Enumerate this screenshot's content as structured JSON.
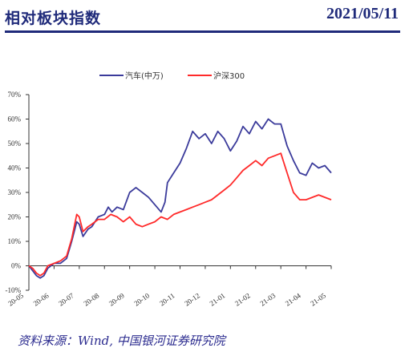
{
  "header": {
    "title": "相对板块指数",
    "date": "2021/05/11"
  },
  "source": "资料来源：Wind, 中国银河证券研究院",
  "colors": {
    "series1": "#3b3b9b",
    "series2": "#ff2a2a",
    "header": "#1f2a7a"
  },
  "chart_data": {
    "type": "line",
    "legend_position": "top-center",
    "grid": false,
    "ylim": [
      -10,
      70
    ],
    "yticks": [
      "-10%",
      "0%",
      "10%",
      "20%",
      "30%",
      "40%",
      "50%",
      "60%",
      "70%"
    ],
    "xlim": [
      0,
      24
    ],
    "xticks": [
      "20-05",
      "20-06",
      "20-07",
      "20-08",
      "20-09",
      "20-10",
      "20-11",
      "20-12",
      "21-01",
      "21-02",
      "21-03",
      "21-04",
      "21-05"
    ],
    "series": [
      {
        "name": "汽车(中万)",
        "points": [
          [
            0,
            0
          ],
          [
            0.3,
            -2
          ],
          [
            0.6,
            -4
          ],
          [
            0.9,
            -5
          ],
          [
            1.2,
            -4
          ],
          [
            1.5,
            -1
          ],
          [
            2,
            1
          ],
          [
            2.5,
            1
          ],
          [
            3,
            3
          ],
          [
            3.4,
            10
          ],
          [
            3.8,
            18
          ],
          [
            4.0,
            17
          ],
          [
            4.3,
            12
          ],
          [
            4.7,
            15
          ],
          [
            5,
            16
          ],
          [
            5.5,
            20
          ],
          [
            6,
            21
          ],
          [
            6.3,
            24
          ],
          [
            6.6,
            22
          ],
          [
            7,
            24
          ],
          [
            7.5,
            23
          ],
          [
            8,
            30
          ],
          [
            8.5,
            32
          ],
          [
            9,
            30
          ],
          [
            9.5,
            28
          ],
          [
            10,
            25
          ],
          [
            10.5,
            22
          ],
          [
            10.8,
            26
          ],
          [
            11,
            34
          ],
          [
            11.5,
            38
          ],
          [
            12,
            42
          ],
          [
            12.5,
            48
          ],
          [
            13,
            55
          ],
          [
            13.5,
            52
          ],
          [
            14,
            54
          ],
          [
            14.5,
            50
          ],
          [
            15,
            55
          ],
          [
            15.5,
            52
          ],
          [
            16,
            47
          ],
          [
            16.5,
            51
          ],
          [
            17,
            57
          ],
          [
            17.5,
            54
          ],
          [
            18,
            59
          ],
          [
            18.5,
            56
          ],
          [
            19,
            60
          ],
          [
            19.5,
            58
          ],
          [
            20,
            58
          ],
          [
            20.5,
            49
          ],
          [
            21,
            43
          ],
          [
            21.5,
            38
          ],
          [
            22,
            37
          ],
          [
            22.5,
            42
          ],
          [
            23,
            40
          ],
          [
            23.5,
            41
          ],
          [
            24,
            38
          ]
        ]
      },
      {
        "name": "沪深300",
        "points": [
          [
            0,
            0
          ],
          [
            0.3,
            -1
          ],
          [
            0.6,
            -3
          ],
          [
            0.9,
            -4
          ],
          [
            1.2,
            -3
          ],
          [
            1.5,
            0
          ],
          [
            2,
            1
          ],
          [
            2.5,
            2
          ],
          [
            3,
            4
          ],
          [
            3.4,
            11
          ],
          [
            3.8,
            21
          ],
          [
            4.0,
            20
          ],
          [
            4.3,
            14
          ],
          [
            4.7,
            16
          ],
          [
            5,
            17
          ],
          [
            5.5,
            19
          ],
          [
            6,
            19
          ],
          [
            6.5,
            21
          ],
          [
            7,
            20
          ],
          [
            7.5,
            18
          ],
          [
            8,
            20
          ],
          [
            8.5,
            17
          ],
          [
            9,
            16
          ],
          [
            9.5,
            17
          ],
          [
            10,
            18
          ],
          [
            10.5,
            20
          ],
          [
            11,
            19
          ],
          [
            11.5,
            21
          ],
          [
            12,
            22
          ],
          [
            12.5,
            23
          ],
          [
            13,
            24
          ],
          [
            13.5,
            25
          ],
          [
            14,
            26
          ],
          [
            14.5,
            27
          ],
          [
            15,
            29
          ],
          [
            15.5,
            31
          ],
          [
            16,
            33
          ],
          [
            16.5,
            36
          ],
          [
            17,
            39
          ],
          [
            17.5,
            41
          ],
          [
            18,
            43
          ],
          [
            18.5,
            41
          ],
          [
            19,
            44
          ],
          [
            19.5,
            45
          ],
          [
            20,
            46
          ],
          [
            20.5,
            38
          ],
          [
            21,
            30
          ],
          [
            21.5,
            27
          ],
          [
            22,
            27
          ],
          [
            22.5,
            28
          ],
          [
            23,
            29
          ],
          [
            23.5,
            28
          ],
          [
            24,
            27
          ]
        ]
      }
    ]
  }
}
